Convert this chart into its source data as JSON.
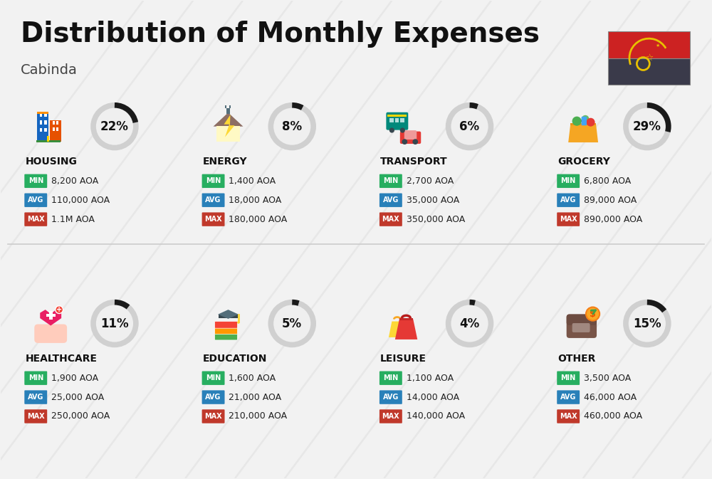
{
  "title": "Distribution of Monthly Expenses",
  "subtitle": "Cabinda",
  "bg_color": "#f2f2f2",
  "categories": [
    {
      "name": "HOUSING",
      "percent": 22,
      "min": "8,200 AOA",
      "avg": "110,000 AOA",
      "max": "1.1M AOA",
      "icon": "housing",
      "col": 0,
      "row": 0
    },
    {
      "name": "ENERGY",
      "percent": 8,
      "min": "1,400 AOA",
      "avg": "18,000 AOA",
      "max": "180,000 AOA",
      "icon": "energy",
      "col": 1,
      "row": 0
    },
    {
      "name": "TRANSPORT",
      "percent": 6,
      "min": "2,700 AOA",
      "avg": "35,000 AOA",
      "max": "350,000 AOA",
      "icon": "transport",
      "col": 2,
      "row": 0
    },
    {
      "name": "GROCERY",
      "percent": 29,
      "min": "6,800 AOA",
      "avg": "89,000 AOA",
      "max": "890,000 AOA",
      "icon": "grocery",
      "col": 3,
      "row": 0
    },
    {
      "name": "HEALTHCARE",
      "percent": 11,
      "min": "1,900 AOA",
      "avg": "25,000 AOA",
      "max": "250,000 AOA",
      "icon": "healthcare",
      "col": 0,
      "row": 1
    },
    {
      "name": "EDUCATION",
      "percent": 5,
      "min": "1,600 AOA",
      "avg": "21,000 AOA",
      "max": "210,000 AOA",
      "icon": "education",
      "col": 1,
      "row": 1
    },
    {
      "name": "LEISURE",
      "percent": 4,
      "min": "1,100 AOA",
      "avg": "14,000 AOA",
      "max": "140,000 AOA",
      "icon": "leisure",
      "col": 2,
      "row": 1
    },
    {
      "name": "OTHER",
      "percent": 15,
      "min": "3,500 AOA",
      "avg": "46,000 AOA",
      "max": "460,000 AOA",
      "icon": "other",
      "col": 3,
      "row": 1
    }
  ],
  "min_color": "#27ae60",
  "avg_color": "#2980b9",
  "max_color": "#c0392b",
  "bg_color_white": "#ffffff",
  "circle_bg_color": "#d0d0d0",
  "circle_arc_color": "#1a1a1a",
  "diagonal_color": "#e0e0e0",
  "divider_color": "#cccccc",
  "flag_top_color": "#cc2222",
  "flag_bottom_color": "#3a3a4a",
  "flag_symbol_color": "#e8c000",
  "title_fontsize": 28,
  "subtitle_fontsize": 14,
  "cat_fontsize": 10,
  "label_fontsize": 7,
  "value_fontsize": 9,
  "pct_fontsize": 12
}
